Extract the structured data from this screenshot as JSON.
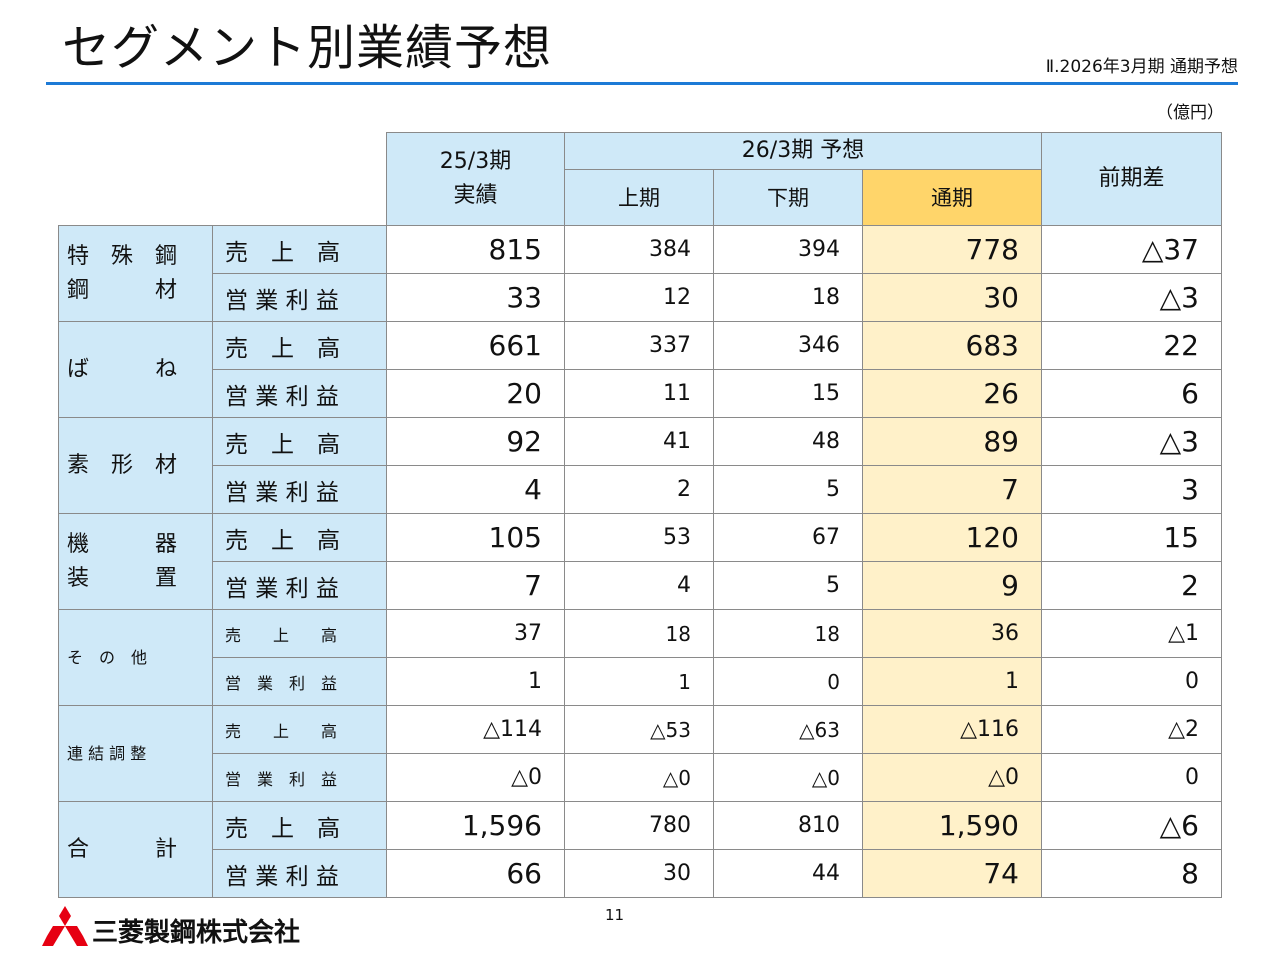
{
  "title": "セグメント別業績予想",
  "subtitle": "Ⅱ.2026年3月期 通期予想",
  "unit": "（億円）",
  "table": {
    "header_prev_line1": "25/3期",
    "header_prev_line2": "実績",
    "header_fcst": "26/3期 予想",
    "header_h1": "上期",
    "header_h2": "下期",
    "header_full": "通期",
    "header_diff": "前期差",
    "segments": [
      {
        "name": [
          "特　殊　鋼",
          "鋼　　　材"
        ],
        "rows": [
          {
            "metric": "売　上　高",
            "prev": "815",
            "h1": "384",
            "h2": "394",
            "full": "778",
            "diff": "△37"
          },
          {
            "metric": "営 業 利 益",
            "prev": "33",
            "h1": "12",
            "h2": "18",
            "full": "30",
            "diff": "△3"
          }
        ]
      },
      {
        "name": [
          "ば　　　ね"
        ],
        "rows": [
          {
            "metric": "売　上　高",
            "prev": "661",
            "h1": "337",
            "h2": "346",
            "full": "683",
            "diff": "22"
          },
          {
            "metric": "営 業 利 益",
            "prev": "20",
            "h1": "11",
            "h2": "15",
            "full": "26",
            "diff": "6"
          }
        ]
      },
      {
        "name": [
          "素　形　材"
        ],
        "rows": [
          {
            "metric": "売　上　高",
            "prev": "92",
            "h1": "41",
            "h2": "48",
            "full": "89",
            "diff": "△3"
          },
          {
            "metric": "営 業 利 益",
            "prev": "4",
            "h1": "2",
            "h2": "5",
            "full": "7",
            "diff": "3"
          }
        ]
      },
      {
        "name": [
          "機　　　器",
          "装　　　置"
        ],
        "rows": [
          {
            "metric": "売　上　高",
            "prev": "105",
            "h1": "53",
            "h2": "67",
            "full": "120",
            "diff": "15"
          },
          {
            "metric": "営 業 利 益",
            "prev": "7",
            "h1": "4",
            "h2": "5",
            "full": "9",
            "diff": "2"
          }
        ]
      },
      {
        "name": [
          "そ　の　他"
        ],
        "small": true,
        "rows": [
          {
            "metric": "売　　上　　高",
            "prev": "37",
            "h1": "18",
            "h2": "18",
            "full": "36",
            "diff": "△1"
          },
          {
            "metric": "営　業　利　益",
            "prev": "1",
            "h1": "1",
            "h2": "0",
            "full": "1",
            "diff": "0"
          }
        ]
      },
      {
        "name": [
          "連 結 調 整"
        ],
        "small": true,
        "rows": [
          {
            "metric": "売　　上　　高",
            "prev": "△114",
            "h1": "△53",
            "h2": "△63",
            "full": "△116",
            "diff": "△2"
          },
          {
            "metric": "営　業　利　益",
            "prev": "△0",
            "h1": "△0",
            "h2": "△0",
            "full": "△0",
            "diff": "0"
          }
        ]
      },
      {
        "name": [
          "合　　　計"
        ],
        "rows": [
          {
            "metric": "売　上　高",
            "prev": "1,596",
            "h1": "780",
            "h2": "810",
            "full": "1,590",
            "diff": "△6"
          },
          {
            "metric": "営 業 利 益",
            "prev": "66",
            "h1": "30",
            "h2": "44",
            "full": "74",
            "diff": "8"
          }
        ]
      }
    ]
  },
  "page_number": "11",
  "company": "三菱製鋼株式会社",
  "colors": {
    "header_bg": "#cfe9f8",
    "highlight_header": "#ffd56a",
    "highlight_cell": "#fff1c9",
    "rule": "#1d7ad6",
    "logo_red": "#e60012"
  }
}
